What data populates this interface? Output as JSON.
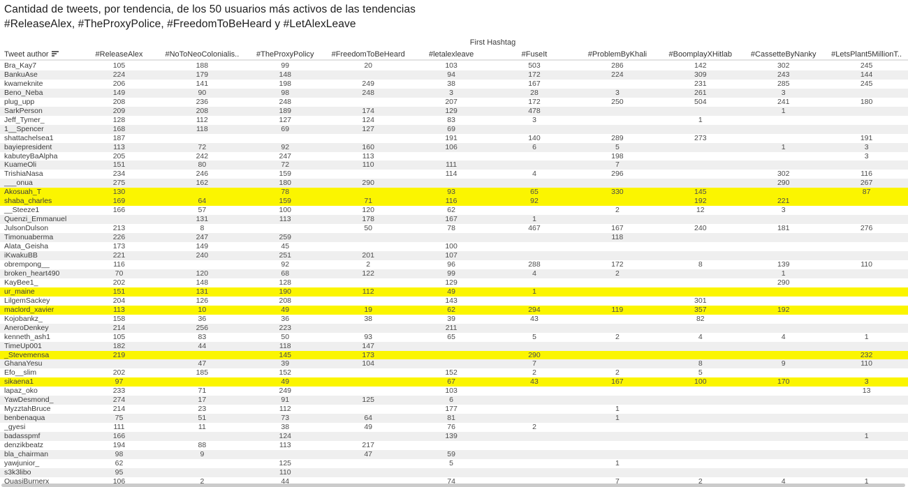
{
  "title": {
    "line1": "Cantidad de tweets, por tendencia, de los 50 usuarios más activos de las tendencias",
    "line2": "#ReleaseAlex, #TheProxyPolice, #FreedomToBeHeard y #LetAlexLeave"
  },
  "table": {
    "group_header": "First Hashtag",
    "author_header": "Tweet author",
    "sort_icon": "sort-descending-icon"
  },
  "colors": {
    "highlight": "#fbf500",
    "row_alt": "#efefef",
    "header_text": "#333333",
    "cell_text": "#4c4c4c"
  },
  "chart_data": {
    "type": "table",
    "title": "Cantidad de tweets, por tendencia, de los 50 usuarios más activos de las tendencias #ReleaseAlex, #TheProxyPolice, #FreedomToBeHeard y #LetAlexLeave",
    "column_group_label": "First Hashtag",
    "row_label": "Tweet author",
    "columns": [
      "#ReleaseAlex",
      "#NoToNeoColonialis..",
      "#TheProxyPolicy",
      "#FreedomToBeHeard",
      "#letalexleave",
      "#FuseIt",
      "#ProblemByKhali",
      "#BoomplayXHitlab",
      "#CassetteByNanky",
      "#LetsPlant5MillionT.."
    ],
    "rows": [
      {
        "author": "Bra_Kay7",
        "values": [
          105,
          188,
          99,
          20,
          103,
          503,
          286,
          142,
          302,
          245
        ],
        "highlighted": false
      },
      {
        "author": "BankuAse",
        "values": [
          224,
          179,
          148,
          null,
          94,
          172,
          224,
          309,
          243,
          144
        ],
        "highlighted": false
      },
      {
        "author": "kwameknite",
        "values": [
          206,
          141,
          198,
          249,
          38,
          167,
          null,
          231,
          285,
          245
        ],
        "highlighted": false
      },
      {
        "author": "Beno_Neba",
        "values": [
          149,
          90,
          98,
          248,
          3,
          28,
          3,
          261,
          3,
          null
        ],
        "highlighted": false
      },
      {
        "author": "plug_upp",
        "values": [
          208,
          236,
          248,
          null,
          207,
          172,
          250,
          504,
          241,
          180
        ],
        "highlighted": false
      },
      {
        "author": "SarkPerson",
        "values": [
          209,
          208,
          189,
          174,
          129,
          478,
          null,
          null,
          1,
          null
        ],
        "highlighted": false
      },
      {
        "author": "Jeff_Tymer_",
        "values": [
          128,
          112,
          127,
          124,
          83,
          3,
          null,
          1,
          null,
          null
        ],
        "highlighted": false
      },
      {
        "author": "1__Spencer",
        "values": [
          168,
          118,
          69,
          127,
          69,
          null,
          null,
          null,
          null,
          null
        ],
        "highlighted": false
      },
      {
        "author": "shattachelsea1",
        "values": [
          187,
          null,
          null,
          null,
          191,
          140,
          289,
          273,
          null,
          191
        ],
        "highlighted": false
      },
      {
        "author": "bayiepresident",
        "values": [
          113,
          72,
          92,
          160,
          106,
          6,
          5,
          null,
          1,
          3
        ],
        "highlighted": false
      },
      {
        "author": "kabuteyBaAlpha",
        "values": [
          205,
          242,
          247,
          113,
          null,
          null,
          198,
          null,
          null,
          3
        ],
        "highlighted": false
      },
      {
        "author": "KuameOli",
        "values": [
          151,
          80,
          72,
          110,
          111,
          null,
          7,
          null,
          null,
          null
        ],
        "highlighted": false
      },
      {
        "author": "TrishiaNasa",
        "values": [
          234,
          246,
          159,
          null,
          114,
          4,
          296,
          null,
          302,
          116
        ],
        "highlighted": false
      },
      {
        "author": "___onua",
        "values": [
          275,
          162,
          180,
          290,
          null,
          null,
          null,
          null,
          290,
          267
        ],
        "highlighted": false
      },
      {
        "author": "Akosuah_T",
        "values": [
          130,
          null,
          78,
          null,
          93,
          65,
          330,
          145,
          null,
          87
        ],
        "highlighted": true
      },
      {
        "author": "shaba_charles",
        "values": [
          169,
          64,
          159,
          71,
          116,
          92,
          null,
          192,
          221,
          null
        ],
        "highlighted": true
      },
      {
        "author": "__Steeze1",
        "values": [
          166,
          57,
          100,
          120,
          62,
          null,
          2,
          12,
          3,
          null
        ],
        "highlighted": false
      },
      {
        "author": "Quenzi_Emmanuel",
        "values": [
          null,
          131,
          113,
          178,
          167,
          1,
          null,
          null,
          null,
          null
        ],
        "highlighted": false
      },
      {
        "author": "JulsonDulson",
        "values": [
          213,
          8,
          null,
          50,
          78,
          467,
          167,
          240,
          181,
          276
        ],
        "highlighted": false
      },
      {
        "author": "Timonuaberma",
        "values": [
          226,
          247,
          259,
          null,
          null,
          null,
          118,
          null,
          null,
          null
        ],
        "highlighted": false
      },
      {
        "author": "Alata_Geisha",
        "values": [
          173,
          149,
          45,
          null,
          100,
          null,
          null,
          null,
          null,
          null
        ],
        "highlighted": false
      },
      {
        "author": "iKwakuBB",
        "values": [
          221,
          240,
          251,
          201,
          107,
          null,
          null,
          null,
          null,
          null
        ],
        "highlighted": false
      },
      {
        "author": "obrempong__",
        "values": [
          116,
          null,
          92,
          2,
          96,
          288,
          172,
          8,
          139,
          110
        ],
        "highlighted": false
      },
      {
        "author": "broken_heart490",
        "values": [
          70,
          120,
          68,
          122,
          99,
          4,
          2,
          null,
          1,
          null
        ],
        "highlighted": false
      },
      {
        "author": "KayBee1_",
        "values": [
          202,
          148,
          128,
          null,
          129,
          null,
          null,
          null,
          290,
          null
        ],
        "highlighted": false
      },
      {
        "author": "ur_maine",
        "values": [
          151,
          131,
          190,
          112,
          49,
          1,
          null,
          null,
          null,
          null
        ],
        "highlighted": true
      },
      {
        "author": "LilgemSackey",
        "values": [
          204,
          126,
          208,
          null,
          143,
          null,
          null,
          301,
          null,
          null
        ],
        "highlighted": false
      },
      {
        "author": "maclord_xavier",
        "values": [
          113,
          10,
          49,
          19,
          62,
          294,
          119,
          357,
          192,
          null
        ],
        "highlighted": true
      },
      {
        "author": "Kojobankz_",
        "values": [
          158,
          36,
          36,
          38,
          39,
          43,
          null,
          82,
          null,
          null
        ],
        "highlighted": false
      },
      {
        "author": "AneroDenkey",
        "values": [
          214,
          256,
          223,
          null,
          211,
          null,
          null,
          null,
          null,
          null
        ],
        "highlighted": false
      },
      {
        "author": "kenneth_ash1",
        "values": [
          105,
          83,
          50,
          93,
          65,
          5,
          2,
          4,
          4,
          1
        ],
        "highlighted": false
      },
      {
        "author": "TimeUp001",
        "values": [
          182,
          44,
          118,
          147,
          null,
          null,
          null,
          null,
          null,
          null
        ],
        "highlighted": false
      },
      {
        "author": "_Stevemensa",
        "values": [
          219,
          null,
          145,
          173,
          null,
          290,
          null,
          null,
          null,
          232
        ],
        "highlighted": true
      },
      {
        "author": "GhanaYesu",
        "values": [
          null,
          47,
          39,
          104,
          null,
          7,
          null,
          8,
          9,
          110
        ],
        "highlighted": false
      },
      {
        "author": "Efo__slim",
        "values": [
          202,
          185,
          152,
          null,
          152,
          2,
          2,
          5,
          null,
          null
        ],
        "highlighted": false
      },
      {
        "author": "sikaena1",
        "values": [
          97,
          null,
          49,
          null,
          67,
          43,
          167,
          100,
          170,
          3
        ],
        "highlighted": true
      },
      {
        "author": "lapaz_oko",
        "values": [
          233,
          71,
          249,
          null,
          103,
          null,
          null,
          null,
          null,
          13
        ],
        "highlighted": false
      },
      {
        "author": "YawDesmond_",
        "values": [
          274,
          17,
          91,
          125,
          6,
          null,
          null,
          null,
          null,
          null
        ],
        "highlighted": false
      },
      {
        "author": "MyzztahBruce",
        "values": [
          214,
          23,
          112,
          null,
          177,
          null,
          1,
          null,
          null,
          null
        ],
        "highlighted": false
      },
      {
        "author": "benbenaqua",
        "values": [
          75,
          51,
          73,
          64,
          81,
          null,
          1,
          null,
          null,
          null
        ],
        "highlighted": false
      },
      {
        "author": "_gyesi",
        "values": [
          111,
          11,
          38,
          49,
          76,
          2,
          null,
          null,
          null,
          null
        ],
        "highlighted": false
      },
      {
        "author": "badasspmf",
        "values": [
          166,
          null,
          124,
          null,
          139,
          null,
          null,
          null,
          null,
          1
        ],
        "highlighted": false
      },
      {
        "author": "denzikbeatz",
        "values": [
          194,
          88,
          113,
          217,
          null,
          null,
          null,
          null,
          null,
          null
        ],
        "highlighted": false
      },
      {
        "author": "bla_chairman",
        "values": [
          98,
          9,
          null,
          47,
          59,
          null,
          null,
          null,
          null,
          null
        ],
        "highlighted": false
      },
      {
        "author": "yawjunior_",
        "values": [
          62,
          null,
          125,
          null,
          5,
          null,
          1,
          null,
          null,
          null
        ],
        "highlighted": false
      },
      {
        "author": "s3k3libo",
        "values": [
          95,
          null,
          110,
          null,
          null,
          null,
          null,
          null,
          null,
          null
        ],
        "highlighted": false
      },
      {
        "author": "QuasiBurnerx",
        "values": [
          106,
          2,
          44,
          null,
          74,
          null,
          7,
          2,
          4,
          1
        ],
        "highlighted": false
      }
    ]
  }
}
